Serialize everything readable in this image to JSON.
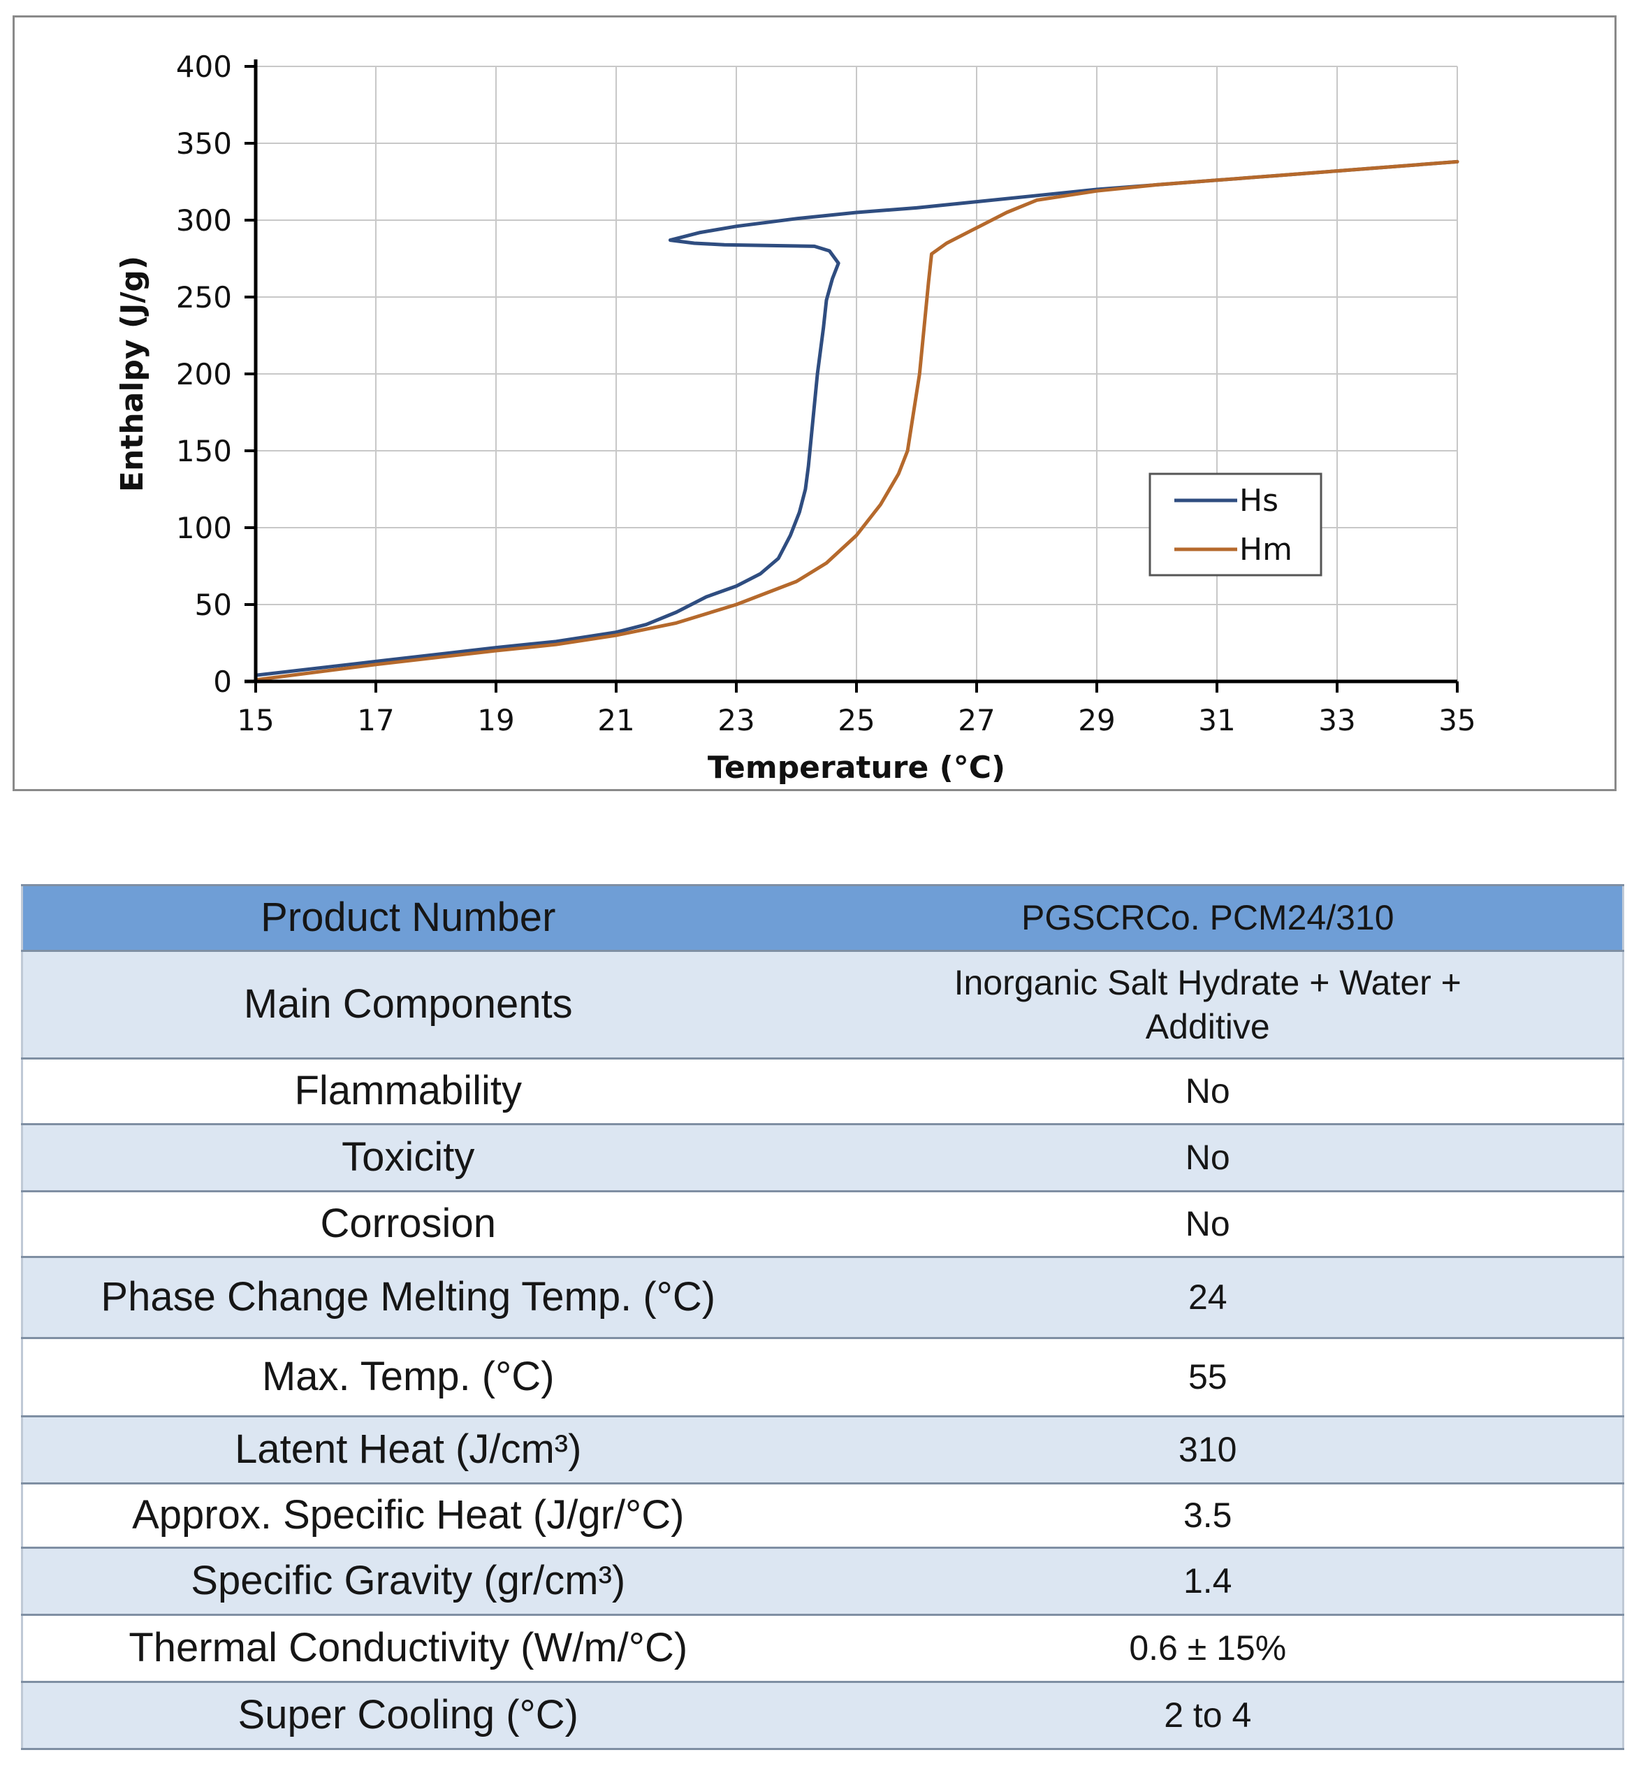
{
  "chart_data": {
    "type": "line",
    "title": "",
    "xlabel": "Temperature (°C)",
    "ylabel": "Enthalpy (J/g)",
    "xlim": [
      15,
      35
    ],
    "ylim": [
      0,
      400
    ],
    "xticks": [
      15,
      17,
      19,
      21,
      23,
      25,
      27,
      29,
      31,
      33,
      35
    ],
    "yticks": [
      0,
      50,
      100,
      150,
      200,
      250,
      300,
      350,
      400
    ],
    "grid": true,
    "legend_position": "right",
    "series": [
      {
        "name": "Hs",
        "color": "#2f4d80",
        "points": [
          [
            15,
            4
          ],
          [
            17,
            13
          ],
          [
            19,
            22
          ],
          [
            20,
            26
          ],
          [
            21,
            32
          ],
          [
            21.5,
            37
          ],
          [
            22,
            45
          ],
          [
            22.5,
            55
          ],
          [
            23,
            62
          ],
          [
            23.4,
            70
          ],
          [
            23.7,
            80
          ],
          [
            23.9,
            95
          ],
          [
            24.05,
            110
          ],
          [
            24.15,
            125
          ],
          [
            24.2,
            140
          ],
          [
            24.25,
            160
          ],
          [
            24.3,
            180
          ],
          [
            24.35,
            200
          ],
          [
            24.45,
            230
          ],
          [
            24.5,
            248
          ],
          [
            24.6,
            262
          ],
          [
            24.7,
            272
          ],
          [
            24.55,
            280
          ],
          [
            24.3,
            283
          ],
          [
            23.5,
            283.5
          ],
          [
            22.8,
            284
          ],
          [
            22.3,
            285
          ],
          [
            21.9,
            287
          ],
          [
            22.1,
            289
          ],
          [
            22.4,
            292
          ],
          [
            23,
            296
          ],
          [
            24,
            301
          ],
          [
            25,
            305
          ],
          [
            26,
            308
          ],
          [
            27,
            312
          ],
          [
            28,
            316
          ],
          [
            29,
            320
          ],
          [
            30,
            323
          ],
          [
            31,
            326
          ],
          [
            32,
            329
          ],
          [
            33,
            332
          ],
          [
            34,
            335
          ],
          [
            35,
            338
          ]
        ]
      },
      {
        "name": "Hm",
        "color": "#b5692c",
        "points": [
          [
            15,
            1
          ],
          [
            17,
            11
          ],
          [
            19,
            20
          ],
          [
            20,
            24
          ],
          [
            21,
            30
          ],
          [
            22,
            38
          ],
          [
            23,
            50
          ],
          [
            24,
            65
          ],
          [
            24.5,
            77
          ],
          [
            25,
            95
          ],
          [
            25.4,
            115
          ],
          [
            25.7,
            135
          ],
          [
            25.85,
            150
          ],
          [
            25.95,
            175
          ],
          [
            26.05,
            200
          ],
          [
            26.1,
            220
          ],
          [
            26.15,
            240
          ],
          [
            26.2,
            260
          ],
          [
            26.25,
            278
          ],
          [
            26.5,
            285
          ],
          [
            27,
            295
          ],
          [
            27.5,
            305
          ],
          [
            28,
            313
          ],
          [
            29,
            319
          ],
          [
            30,
            323
          ],
          [
            31,
            326
          ],
          [
            32,
            329
          ],
          [
            33,
            332
          ],
          [
            34,
            335
          ],
          [
            35,
            338
          ]
        ]
      }
    ]
  },
  "table": {
    "rows": [
      {
        "label": "Product Number",
        "value": "PGSCRCo. PCM24/310"
      },
      {
        "label": "Main Components",
        "value": "Inorganic Salt Hydrate + Water + Additive"
      },
      {
        "label": "Flammability",
        "value": "No"
      },
      {
        "label": "Toxicity",
        "value": "No"
      },
      {
        "label": "Corrosion",
        "value": "No"
      },
      {
        "label": "Phase Change Melting Temp. (°C)",
        "value": "24"
      },
      {
        "label": "Max. Temp. (°C)",
        "value": "55"
      },
      {
        "label": "Latent Heat (J/cm³)",
        "value": "310"
      },
      {
        "label": "Approx. Specific Heat (J/gr/°C)",
        "value": "3.5"
      },
      {
        "label": "Specific Gravity (gr/cm³)",
        "value": "1.4"
      },
      {
        "label": "Thermal Conductivity (W/m/°C)",
        "value": "0.6 ± 15%"
      },
      {
        "label": "Super Cooling (°C)",
        "value": "2 to 4"
      }
    ]
  }
}
